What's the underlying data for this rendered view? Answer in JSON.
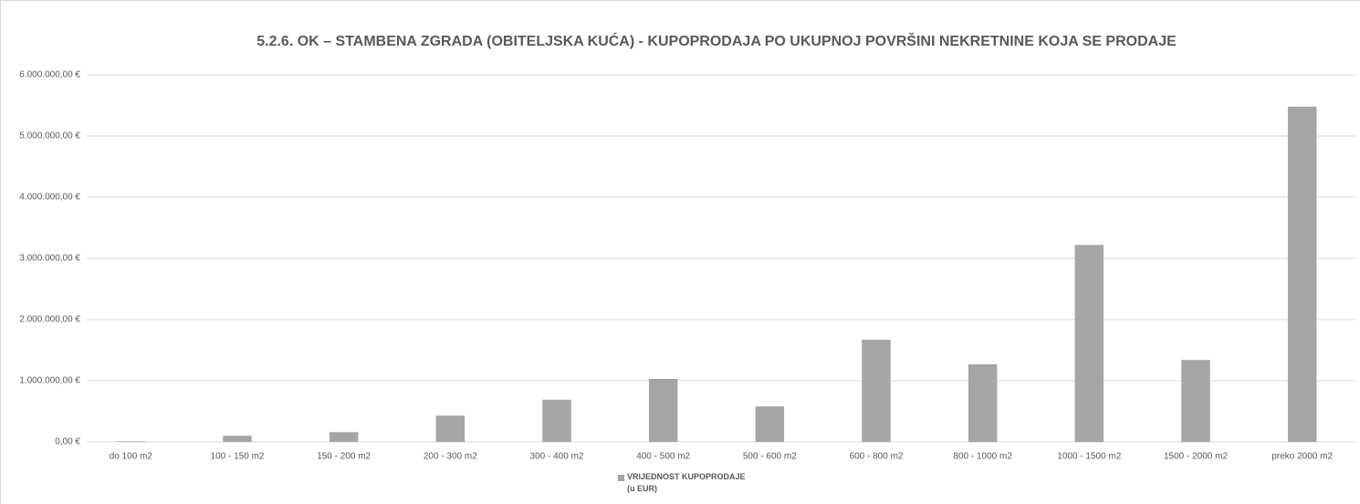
{
  "chart_data": {
    "type": "bar",
    "title": "5.2.6. OK – STAMBENA ZGRADA (OBITELJSKA KUĆA) - KUPOPRODAJA PO UKUPNOJ POVRŠINI NEKRETNINE KOJA SE PRODAJE",
    "categories": [
      "do 100 m2",
      "100 - 150 m2",
      "150 - 200 m2",
      "200 - 300 m2",
      "300 - 400 m2",
      "400 - 500 m2",
      "500 - 600 m2",
      "600 - 800 m2",
      "800 - 1000 m2",
      "1000 - 1500 m2",
      "1500 - 2000 m2",
      "preko 2000 m2"
    ],
    "series": [
      {
        "name": "VRIJEDNOST KUPOPRODAJE\n(u EUR)",
        "color": "#a5a5a5",
        "values": [
          10000,
          100000,
          160000,
          430000,
          690000,
          1030000,
          580000,
          1670000,
          1270000,
          3220000,
          1340000,
          5480000
        ]
      }
    ],
    "ylim": [
      0,
      6000000
    ],
    "yticks": [
      {
        "value": 0,
        "label": "0,00 €"
      },
      {
        "value": 1000000,
        "label": "1.000.000,00 €"
      },
      {
        "value": 2000000,
        "label": "2.000.000,00 €"
      },
      {
        "value": 3000000,
        "label": "3.000.000,00 €"
      },
      {
        "value": 4000000,
        "label": "4.000.000,00 €"
      },
      {
        "value": 5000000,
        "label": "5.000.000,00 €"
      },
      {
        "value": 6000000,
        "label": "6.000.000,00 €"
      }
    ],
    "grid": true,
    "legend": "bottom"
  }
}
